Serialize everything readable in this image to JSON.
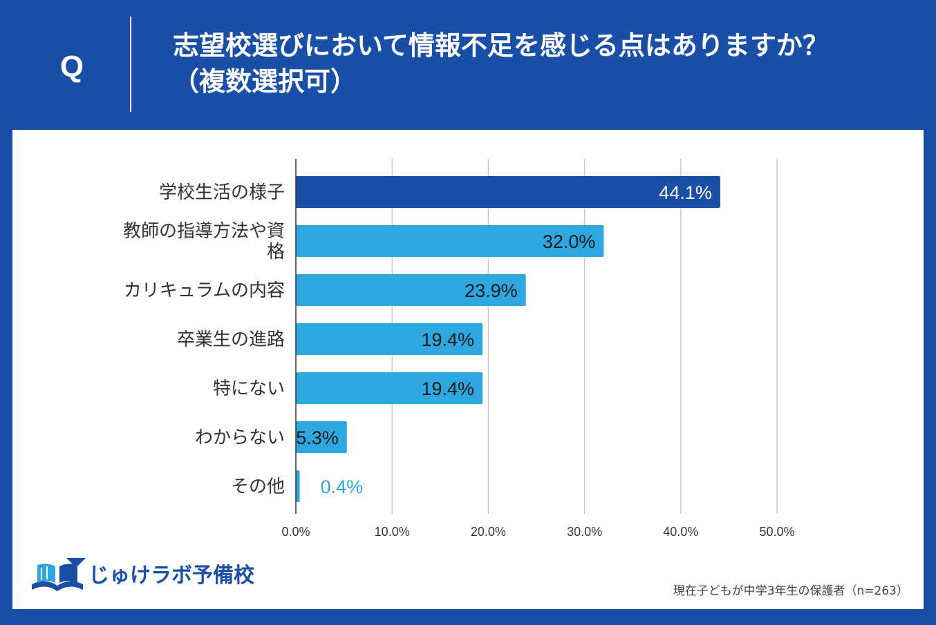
{
  "header": {
    "q_label": "Q",
    "title_line1": "志望校選びにおいて情報不足を感じる点はありますか？",
    "title_line2": "（複数選択可）"
  },
  "chart_data": {
    "type": "bar",
    "orientation": "horizontal",
    "title": "志望校選びにおいて情報不足を感じる点はありますか？（複数選択可）",
    "categories": [
      "学校生活の様子",
      "教師の指導方法や資格",
      "カリキュラムの内容",
      "卒業生の進路",
      "特にない",
      "わからない",
      "その他"
    ],
    "category_lines": [
      [
        "学校生活の様子"
      ],
      [
        "教師の指導方法や資",
        "格"
      ],
      [
        "カリキュラムの内容"
      ],
      [
        "卒業生の進路"
      ],
      [
        "特にない"
      ],
      [
        "わからない"
      ],
      [
        "その他"
      ]
    ],
    "values": [
      44.1,
      32.0,
      23.9,
      19.4,
      19.4,
      5.3,
      0.4
    ],
    "value_labels": [
      "44.1%",
      "32.0%",
      "23.9%",
      "19.4%",
      "19.4%",
      "5.3%",
      "0.4%"
    ],
    "xlim": [
      0,
      50
    ],
    "ticks": [
      0,
      10,
      20,
      30,
      40,
      50
    ],
    "tick_labels": [
      "0.0%",
      "10.0%",
      "20.0%",
      "30.0%",
      "40.0%",
      "50.0%"
    ],
    "grid": true,
    "colors": {
      "highlight": "#1a4fa8",
      "bar": "#2ea7e0",
      "label_on_dark": "#ffffff",
      "label_on_light": "#1a1a1a",
      "label_outside": "#2ea7e0"
    },
    "highlight_index": 0
  },
  "footer": {
    "brand": "じゅけラボ予備校",
    "source": "現在子どもが中学3年生の保護者（n=263）"
  },
  "colors": {
    "background": "#1a4fa8",
    "card": "#ffffff",
    "grid": "#cccccc",
    "axis": "#333333"
  }
}
